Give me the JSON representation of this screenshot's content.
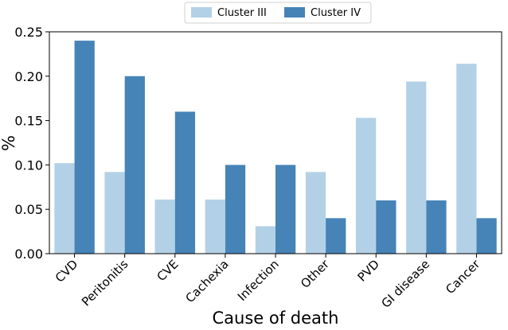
{
  "chart_data": {
    "type": "bar",
    "title": "",
    "xlabel": "Cause of death",
    "ylabel": "%",
    "categories": [
      "CVD",
      "Peritonitis",
      "CVE",
      "Cachexia",
      "Infection",
      "Other",
      "PVD",
      "GI disease",
      "Cancer"
    ],
    "series": [
      {
        "name": "Cluster III",
        "color": "#b3d1e6",
        "values": [
          0.102,
          0.092,
          0.061,
          0.061,
          0.031,
          0.092,
          0.153,
          0.194,
          0.214
        ]
      },
      {
        "name": "Cluster IV",
        "color": "#4683b7",
        "values": [
          0.24,
          0.2,
          0.16,
          0.1,
          0.1,
          0.04,
          0.06,
          0.06,
          0.04
        ]
      }
    ],
    "ylim": [
      0,
      0.25
    ],
    "yticks": [
      "0.00",
      "0.05",
      "0.10",
      "0.15",
      "0.20",
      "0.25"
    ],
    "legend_position": "top-center",
    "grid": false
  }
}
